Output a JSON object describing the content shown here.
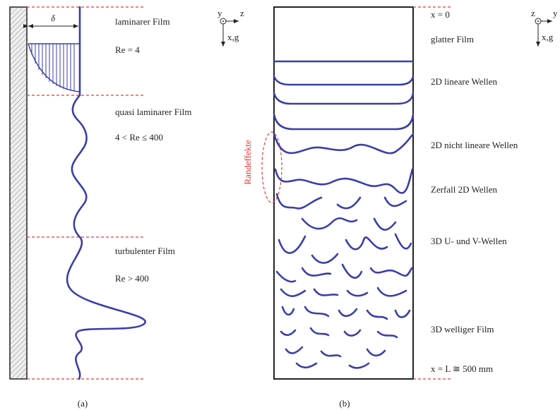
{
  "panel_a": {
    "label": "(a)",
    "delta": "δ",
    "axes": {
      "y": "y",
      "z": "z",
      "down": "x,g"
    },
    "regimes": [
      {
        "name": "laminarer Film",
        "re": "Re = 4"
      },
      {
        "name": "quasi laminarer Film",
        "re": "4 < Re ≤ 400"
      },
      {
        "name": "turbulenter Film",
        "re": "Re > 400"
      }
    ]
  },
  "panel_b": {
    "label": "(b)",
    "edge_effects": "Randeffekte",
    "axes": {
      "z": "z",
      "y": "y",
      "down": "x,g"
    },
    "top": "x = 0",
    "bottom": "x = L ≅ 500 mm",
    "stages": [
      "glatter Film",
      "2D lineare Wellen",
      "2D nicht lineare Wellen",
      "Zerfall 2D Wellen",
      "3D U- und V-Wellen",
      "3D welliger Film"
    ]
  }
}
